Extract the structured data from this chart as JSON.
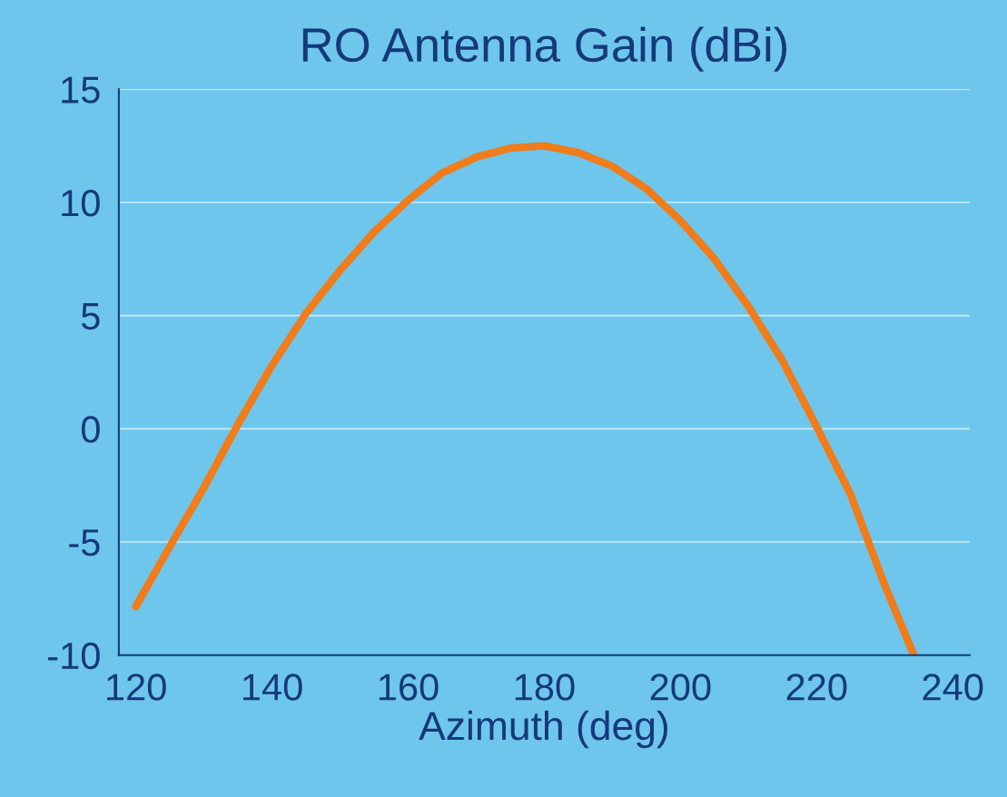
{
  "chart_data": {
    "type": "line",
    "title": "RO Antenna Gain (dBi)",
    "xlabel": "Azimuth (deg)",
    "series": [
      {
        "color": "#f07c1a",
        "x": [
          120,
          125,
          130,
          135,
          140,
          145,
          150,
          155,
          160,
          165,
          170,
          175,
          180,
          185,
          190,
          195,
          200,
          205,
          210,
          215,
          220,
          225,
          230,
          234.3
        ],
        "values": [
          -7.85,
          -5.2,
          -2.6,
          0.2,
          2.8,
          5.1,
          7.0,
          8.7,
          10.1,
          11.3,
          12.0,
          12.4,
          12.5,
          12.2,
          11.6,
          10.6,
          9.2,
          7.5,
          5.4,
          3.0,
          0.1,
          -2.9,
          -6.9,
          -10
        ]
      }
    ],
    "xlim": [
      117.5,
      242.5
    ],
    "xticks": [
      120,
      140,
      160,
      180,
      200,
      220,
      240
    ],
    "ylim": [
      -10,
      15
    ],
    "yticks": [
      {
        "value": -10,
        "label": "-10"
      },
      {
        "value": -5,
        "label": "-5"
      },
      0,
      5,
      10,
      15
    ],
    "grid": "y",
    "marker": "none",
    "line_style": "solid"
  }
}
